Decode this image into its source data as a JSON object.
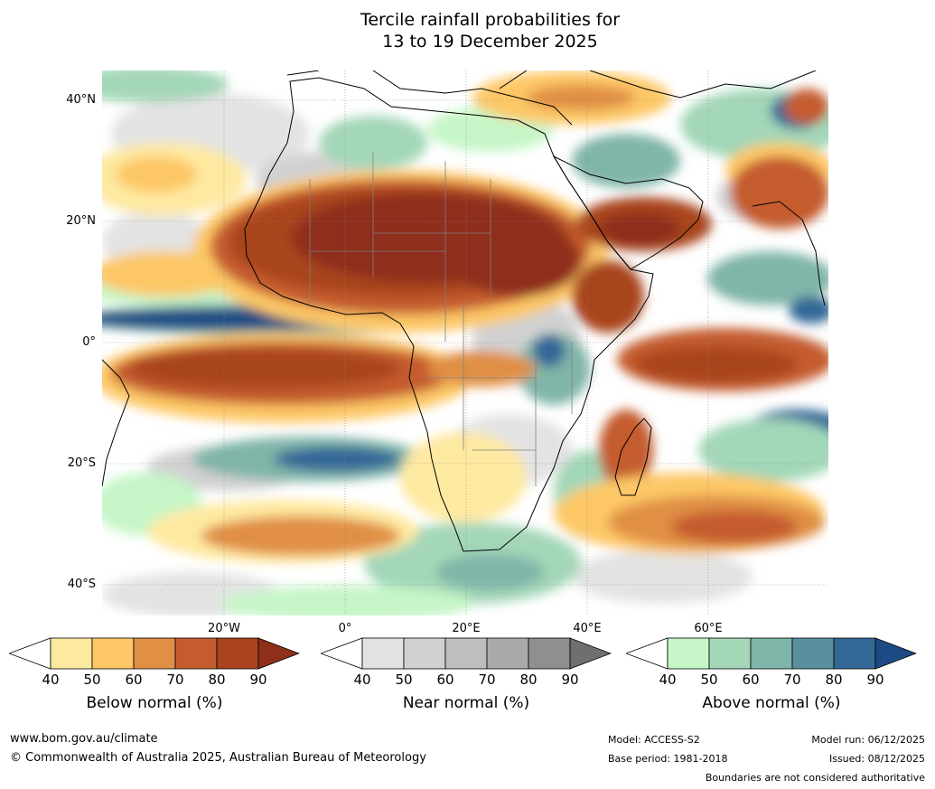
{
  "title": {
    "line1": "Tercile rainfall probabilities for",
    "line2": "13 to 19 December 2025"
  },
  "map": {
    "lat_labels": [
      "40°N",
      "20°N",
      "0°",
      "20°S",
      "40°S"
    ],
    "lon_labels": [
      "20°W",
      "0°",
      "20°E",
      "40°E",
      "60°E"
    ],
    "colors": {
      "ocean_white": "#ffffff",
      "below": [
        "#fee9a0",
        "#fdc766",
        "#e08f45",
        "#c55c2e",
        "#a9441f",
        "#8f2f1a"
      ],
      "near": [
        "#e3e3e3",
        "#d1d1d1",
        "#bebebe",
        "#a9a9a9",
        "#8f8f8f"
      ],
      "above": [
        "#c6f6c8",
        "#a3d7b8",
        "#80b5a9",
        "#5a8fa0",
        "#336897",
        "#1c4a84"
      ],
      "coast": "#000000",
      "border": "#808080"
    }
  },
  "colorbars": [
    {
      "title": "Below normal (%)",
      "ticks": [
        "40",
        "50",
        "60",
        "70",
        "80",
        "90"
      ],
      "colors": [
        "#fee9a0",
        "#fdc766",
        "#e08f45",
        "#c55c2e",
        "#a9441f",
        "#8f2f1a"
      ]
    },
    {
      "title": "Near normal (%)",
      "ticks": [
        "40",
        "50",
        "60",
        "70",
        "80",
        "90"
      ],
      "colors": [
        "#e3e3e3",
        "#d1d1d1",
        "#bebebe",
        "#a9a9a9",
        "#8f8f8f",
        "#6f6f6f"
      ]
    },
    {
      "title": "Above normal (%)",
      "ticks": [
        "40",
        "50",
        "60",
        "70",
        "80",
        "90"
      ],
      "colors": [
        "#c6f6c8",
        "#a3d7b8",
        "#80b5a9",
        "#5a8fa0",
        "#336897",
        "#1c4a84"
      ]
    }
  ],
  "footer": {
    "url": "www.bom.gov.au/climate",
    "copyright": "© Commonwealth of Australia 2025, Australian Bureau of Meteorology",
    "model": "Model: ACCESS-S2",
    "base_period": "Base period: 1981-2018",
    "model_run": "Model run: 06/12/2025",
    "issued": "Issued: 08/12/2025",
    "disclaimer": "Boundaries are not considered authoritative"
  }
}
